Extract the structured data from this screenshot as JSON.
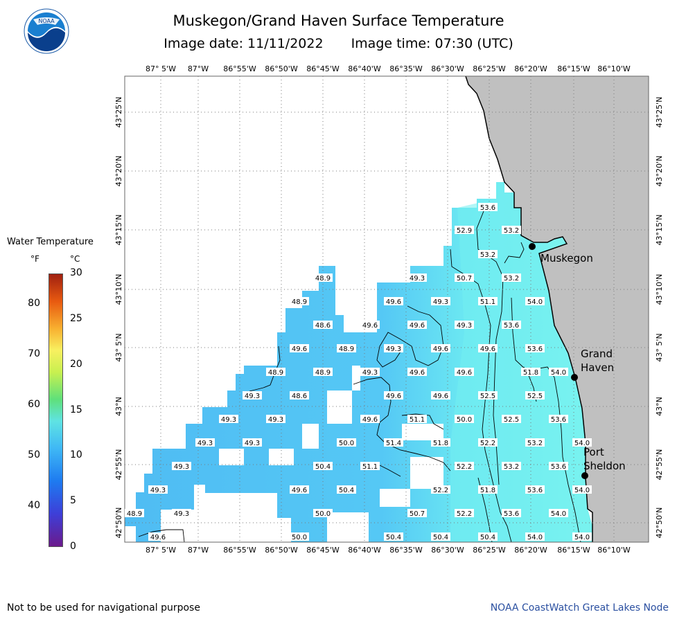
{
  "header": {
    "title": "Muskegon/Grand Haven Surface Temperature",
    "image_date": "Image date: 11/11/2022",
    "image_time": "Image time: 07:30 (UTC)",
    "logo_text": "NOAA"
  },
  "legend": {
    "title": "Water Temperature",
    "unit_f": "°F",
    "unit_c": "°C",
    "f_ticks": [
      "80",
      "70",
      "60",
      "50",
      "40"
    ],
    "c_ticks": [
      "30",
      "25",
      "20",
      "15",
      "10",
      "5",
      "0"
    ],
    "f_values": [
      80,
      70,
      60,
      50,
      40
    ],
    "c_values": [
      30,
      25,
      20,
      15,
      10,
      5,
      0
    ],
    "c_range": [
      0,
      30
    ]
  },
  "map": {
    "lon_labels": [
      "87° 5'W",
      "87°W",
      "86°55'W",
      "86°50'W",
      "86°45'W",
      "86°40'W",
      "86°35'W",
      "86°30'W",
      "86°25'W",
      "86°20'W",
      "86°15'W",
      "86°10'W"
    ],
    "lat_labels": [
      "43°25'N",
      "43°20'N",
      "43°15'N",
      "43°10'N",
      "43° 5'N",
      "43°N",
      "42°55'N",
      "42°50'N"
    ],
    "cities": [
      {
        "name": "Muskegon"
      },
      {
        "name": "Grand Haven",
        "line1": "Grand",
        "line2": "Haven"
      },
      {
        "name": "Port Sheldon",
        "line1": "Port",
        "line2": "Sheldon"
      }
    ],
    "colors": {
      "land": "#c0c0c0",
      "water_cool": "#52c2f5",
      "water_warm": "#78f5f0",
      "grid": "#7a7a7a"
    },
    "temperature_labels": [
      "53.6",
      "52.9",
      "53.2",
      "53.2",
      "48.9",
      "49.3",
      "50.7",
      "53.2",
      "48.9",
      "49.6",
      "49.3",
      "51.1",
      "54.0",
      "48.6",
      "49.6",
      "49.6",
      "49.3",
      "53.6",
      "49.6",
      "48.9",
      "49.3",
      "49.6",
      "49.6",
      "53.6",
      "48.9",
      "48.9",
      "49.3",
      "49.6",
      "49.6",
      "51.8",
      "54.0",
      "49.3",
      "48.6",
      "49.6",
      "49.6",
      "52.5",
      "52.5",
      "49.3",
      "49.3",
      "49.6",
      "51.1",
      "50.0",
      "52.5",
      "53.6",
      "49.3",
      "49.3",
      "50.0",
      "51.4",
      "51.8",
      "52.2",
      "53.2",
      "54.0",
      "49.3",
      "50.4",
      "51.1",
      "52.2",
      "53.2",
      "53.6",
      "49.3",
      "49.6",
      "50.4",
      "52.2",
      "51.8",
      "53.6",
      "54.0",
      "48.9",
      "49.3",
      "50.0",
      "50.7",
      "52.2",
      "53.6",
      "54.0",
      "49.6",
      "50.0",
      "50.4",
      "50.4",
      "50.4",
      "54.0",
      "54.0"
    ]
  },
  "footer": {
    "disclaimer": "Not to be used for navigational purpose",
    "credit": "NOAA CoastWatch Great Lakes Node"
  }
}
